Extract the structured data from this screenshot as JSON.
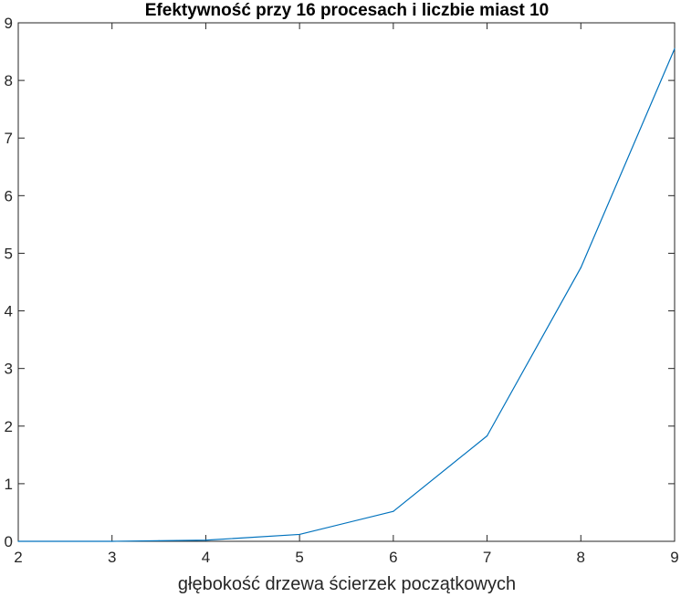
{
  "chart_data": {
    "type": "line",
    "title": "Efektywność przy 16 procesach i liczbie miast 10",
    "xlabel": "głębokość drzewa ścierzek początkowych",
    "ylabel": "",
    "xlim": [
      2,
      9
    ],
    "ylim": [
      0,
      9
    ],
    "xticks": [
      2,
      3,
      4,
      5,
      6,
      7,
      8,
      9
    ],
    "yticks": [
      0,
      1,
      2,
      3,
      4,
      5,
      6,
      7,
      8,
      9
    ],
    "grid": false,
    "series": [
      {
        "color": "#0072BD",
        "x": [
          2,
          3,
          3.5,
          4,
          5,
          6,
          7,
          8,
          9
        ],
        "y": [
          0,
          0,
          0.01,
          0.02,
          0.12,
          0.52,
          1.83,
          4.75,
          8.55
        ]
      }
    ]
  }
}
